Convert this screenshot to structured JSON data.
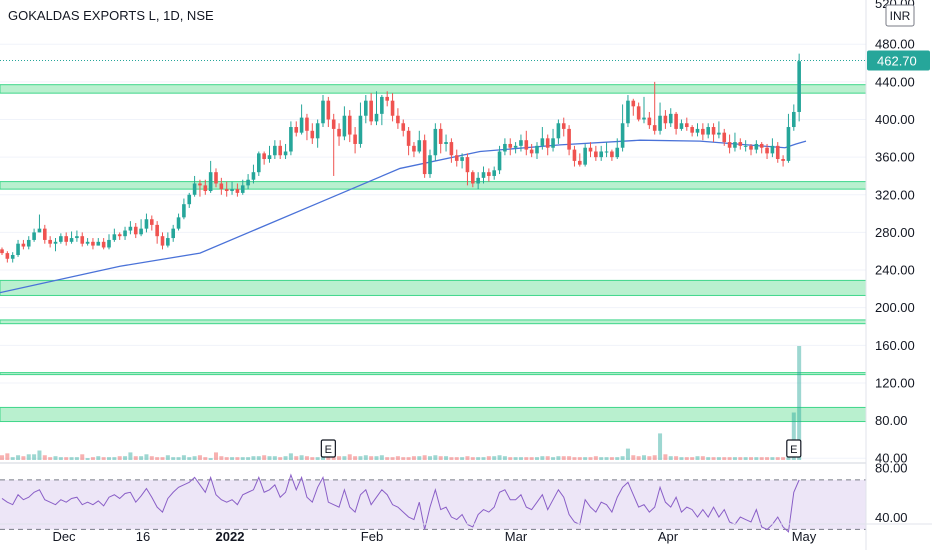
{
  "header": {
    "title": "GOKALDAS EXPORTS L, 1D, NSE"
  },
  "currency": "INR",
  "price_label": "462.70",
  "top_tick_partial": "520.00",
  "colors": {
    "up": "#26a69a",
    "down": "#ef5350",
    "zone_fill": "#b9f0cf",
    "zone_edge": "#3ed68a",
    "ma": "#4a72d8",
    "rsi_line": "#8a5fc7",
    "rsi_band": "#ede6f7",
    "price_label_bg": "#26a69a",
    "grid": "#f0f3fa",
    "axis_text": "#131722"
  },
  "chart_data": {
    "type": "candlestick",
    "symbol": "GOKALDAS EXPORTS L",
    "interval": "1D",
    "exchange": "NSE",
    "y_axis": {
      "ticks": [
        40,
        80,
        120,
        160,
        200,
        240,
        280,
        320,
        360,
        400,
        440,
        480
      ],
      "range": [
        36,
        527
      ]
    },
    "x_axis": {
      "labels": [
        "Dec",
        "16",
        "2022",
        "Feb",
        "Mar",
        "Apr",
        "May"
      ]
    },
    "last_price": 462.7,
    "zones": [
      [
        428,
        437
      ],
      [
        326,
        334
      ],
      [
        213,
        229
      ],
      [
        183,
        187
      ],
      [
        129,
        131
      ],
      [
        79,
        94
      ]
    ],
    "candles": [
      [
        262,
        258,
        264,
        256
      ],
      [
        258,
        252,
        260,
        248
      ],
      [
        252,
        256,
        259,
        248
      ],
      [
        256,
        268,
        272,
        254
      ],
      [
        268,
        265,
        272,
        262
      ],
      [
        265,
        272,
        276,
        262
      ],
      [
        272,
        280,
        284,
        270
      ],
      [
        280,
        284,
        299,
        280
      ],
      [
        284,
        272,
        288,
        268
      ],
      [
        272,
        268,
        276,
        264
      ],
      [
        268,
        270,
        274,
        260
      ],
      [
        270,
        276,
        279,
        268
      ],
      [
        276,
        270,
        280,
        266
      ],
      [
        270,
        274,
        281,
        268
      ],
      [
        274,
        276,
        282,
        270
      ],
      [
        276,
        268,
        280,
        265
      ],
      [
        268,
        270,
        274,
        266
      ],
      [
        270,
        266,
        274,
        262
      ],
      [
        266,
        270,
        274,
        266
      ],
      [
        270,
        264,
        274,
        262
      ],
      [
        264,
        272,
        278,
        262
      ],
      [
        272,
        278,
        284,
        270
      ],
      [
        278,
        276,
        280,
        272
      ],
      [
        276,
        282,
        286,
        272
      ],
      [
        282,
        286,
        292,
        278
      ],
      [
        286,
        278,
        290,
        274
      ],
      [
        278,
        284,
        294,
        276
      ],
      [
        284,
        294,
        300,
        280
      ],
      [
        294,
        288,
        298,
        282
      ],
      [
        288,
        276,
        292,
        268
      ],
      [
        276,
        266,
        280,
        262
      ],
      [
        266,
        274,
        280,
        264
      ],
      [
        274,
        284,
        288,
        270
      ],
      [
        284,
        296,
        300,
        282
      ],
      [
        296,
        310,
        316,
        294
      ],
      [
        310,
        320,
        322,
        306
      ],
      [
        320,
        332,
        340,
        318
      ],
      [
        332,
        330,
        336,
        318
      ],
      [
        330,
        324,
        336,
        320
      ],
      [
        324,
        344,
        356,
        322
      ],
      [
        344,
        332,
        348,
        328
      ],
      [
        332,
        326,
        338,
        320
      ],
      [
        326,
        324,
        334,
        318
      ],
      [
        324,
        326,
        334,
        320
      ],
      [
        326,
        322,
        332,
        318
      ],
      [
        322,
        330,
        336,
        320
      ],
      [
        330,
        336,
        342,
        326
      ],
      [
        336,
        344,
        352,
        332
      ],
      [
        344,
        364,
        366,
        340
      ],
      [
        364,
        358,
        366,
        352
      ],
      [
        358,
        362,
        372,
        354
      ],
      [
        362,
        372,
        378,
        358
      ],
      [
        372,
        362,
        378,
        358
      ],
      [
        362,
        366,
        374,
        358
      ],
      [
        366,
        392,
        398,
        362
      ],
      [
        392,
        386,
        398,
        382
      ],
      [
        386,
        402,
        416,
        384
      ],
      [
        402,
        388,
        406,
        378
      ],
      [
        388,
        380,
        396,
        374
      ],
      [
        380,
        396,
        400,
        370
      ],
      [
        396,
        420,
        426,
        392
      ],
      [
        420,
        400,
        424,
        392
      ],
      [
        400,
        390,
        406,
        340
      ],
      [
        390,
        382,
        396,
        372
      ],
      [
        382,
        404,
        414,
        378
      ],
      [
        404,
        384,
        410,
        376
      ],
      [
        384,
        374,
        392,
        364
      ],
      [
        374,
        404,
        418,
        370
      ],
      [
        404,
        420,
        426,
        396
      ],
      [
        420,
        398,
        428,
        394
      ],
      [
        398,
        406,
        430,
        394
      ],
      [
        406,
        424,
        426,
        394
      ],
      [
        424,
        420,
        430,
        414
      ],
      [
        420,
        404,
        428,
        398
      ],
      [
        404,
        396,
        412,
        390
      ],
      [
        396,
        388,
        400,
        382
      ],
      [
        388,
        372,
        392,
        362
      ],
      [
        372,
        366,
        376,
        360
      ],
      [
        366,
        378,
        388,
        364
      ],
      [
        378,
        342,
        384,
        338
      ],
      [
        342,
        362,
        368,
        338
      ],
      [
        362,
        390,
        396,
        356
      ],
      [
        390,
        374,
        396,
        364
      ],
      [
        374,
        376,
        384,
        366
      ],
      [
        376,
        362,
        380,
        354
      ],
      [
        362,
        356,
        368,
        350
      ],
      [
        356,
        360,
        364,
        348
      ],
      [
        360,
        344,
        364,
        330
      ],
      [
        344,
        332,
        346,
        328
      ],
      [
        332,
        338,
        344,
        326
      ],
      [
        338,
        344,
        350,
        332
      ],
      [
        344,
        340,
        348,
        334
      ],
      [
        340,
        346,
        350,
        336
      ],
      [
        346,
        366,
        372,
        342
      ],
      [
        366,
        374,
        380,
        362
      ],
      [
        374,
        370,
        380,
        362
      ],
      [
        370,
        372,
        376,
        364
      ],
      [
        372,
        378,
        384,
        366
      ],
      [
        378,
        368,
        388,
        362
      ],
      [
        368,
        364,
        374,
        360
      ],
      [
        364,
        372,
        376,
        358
      ],
      [
        372,
        380,
        392,
        368
      ],
      [
        380,
        370,
        384,
        362
      ],
      [
        370,
        380,
        390,
        366
      ],
      [
        380,
        396,
        400,
        374
      ],
      [
        396,
        390,
        402,
        382
      ],
      [
        390,
        368,
        394,
        362
      ],
      [
        368,
        356,
        372,
        350
      ],
      [
        356,
        352,
        364,
        350
      ],
      [
        352,
        370,
        374,
        350
      ],
      [
        370,
        366,
        376,
        360
      ],
      [
        366,
        360,
        372,
        356
      ],
      [
        360,
        366,
        372,
        356
      ],
      [
        366,
        366,
        376,
        360
      ],
      [
        366,
        360,
        368,
        356
      ],
      [
        360,
        370,
        380,
        358
      ],
      [
        370,
        396,
        416,
        366
      ],
      [
        396,
        420,
        426,
        392
      ],
      [
        420,
        414,
        422,
        404
      ],
      [
        414,
        400,
        418,
        398
      ],
      [
        400,
        402,
        424,
        396
      ],
      [
        402,
        394,
        408,
        390
      ],
      [
        394,
        388,
        440,
        384
      ],
      [
        388,
        404,
        418,
        384
      ],
      [
        404,
        396,
        410,
        390
      ],
      [
        396,
        406,
        412,
        392
      ],
      [
        406,
        390,
        408,
        384
      ],
      [
        390,
        396,
        400,
        388
      ],
      [
        396,
        392,
        402,
        388
      ],
      [
        392,
        386,
        394,
        382
      ],
      [
        386,
        390,
        396,
        382
      ],
      [
        390,
        384,
        396,
        378
      ],
      [
        384,
        392,
        396,
        380
      ],
      [
        392,
        384,
        396,
        376
      ],
      [
        384,
        386,
        398,
        380
      ],
      [
        386,
        376,
        390,
        372
      ],
      [
        376,
        370,
        384,
        364
      ],
      [
        370,
        376,
        386,
        366
      ],
      [
        376,
        372,
        380,
        368
      ],
      [
        372,
        372,
        378,
        366
      ],
      [
        372,
        368,
        374,
        362
      ],
      [
        368,
        374,
        378,
        364
      ],
      [
        374,
        370,
        376,
        364
      ],
      [
        370,
        364,
        374,
        358
      ],
      [
        364,
        372,
        380,
        360
      ],
      [
        372,
        358,
        376,
        354
      ],
      [
        358,
        356,
        362,
        350
      ],
      [
        356,
        392,
        406,
        354
      ],
      [
        392,
        408,
        416,
        388
      ],
      [
        408,
        462,
        470,
        398
      ]
    ],
    "moving_average": {
      "name": "",
      "points": [
        [
          0,
          216
        ],
        [
          120,
          244
        ],
        [
          200,
          258
        ],
        [
          320,
          312
        ],
        [
          400,
          348
        ],
        [
          480,
          366
        ],
        [
          560,
          373
        ],
        [
          640,
          378
        ],
        [
          700,
          377
        ],
        [
          760,
          372
        ],
        [
          785,
          370
        ],
        [
          796,
          374
        ],
        [
          806,
          377
        ]
      ]
    },
    "volume": {
      "values": [
        5,
        7,
        3,
        5,
        4,
        6,
        6,
        10,
        5,
        3,
        4,
        3,
        3,
        3,
        3,
        6,
        2,
        3,
        4,
        3,
        3,
        3,
        4,
        4,
        8,
        4,
        4,
        6,
        4,
        3,
        3,
        5,
        3,
        3,
        5,
        3,
        4,
        5,
        3,
        2,
        8,
        4,
        3,
        3,
        3,
        3,
        3,
        4,
        4,
        5,
        4,
        4,
        3,
        4,
        7,
        4,
        5,
        4,
        3,
        3,
        4,
        4,
        9,
        4,
        4,
        6,
        4,
        4,
        5,
        4,
        4,
        5,
        3,
        3,
        4,
        3,
        3,
        4,
        4,
        5,
        4,
        5,
        4,
        4,
        3,
        3,
        3,
        4,
        3,
        3,
        3,
        4,
        4,
        5,
        4,
        3,
        3,
        3,
        3,
        3,
        3,
        4,
        4,
        3,
        4,
        4,
        4,
        3,
        3,
        3,
        3,
        4,
        3,
        3,
        3,
        3,
        4,
        12,
        5,
        4,
        5,
        4,
        5,
        28,
        6,
        4,
        4,
        3,
        3,
        3,
        4,
        4,
        3,
        3,
        3,
        3,
        3,
        3,
        3,
        3,
        3,
        3,
        3,
        3,
        3,
        3,
        3,
        4,
        50,
        120
      ],
      "earnings_markers": [
        "E",
        "E"
      ]
    },
    "rsi": {
      "ticks": [
        40,
        80
      ],
      "values": [
        55,
        52,
        50,
        58,
        54,
        56,
        60,
        62,
        54,
        52,
        50,
        54,
        52,
        55,
        56,
        50,
        52,
        50,
        53,
        49,
        56,
        58,
        55,
        59,
        60,
        52,
        57,
        63,
        56,
        48,
        44,
        55,
        60,
        64,
        66,
        68,
        72,
        66,
        60,
        72,
        58,
        54,
        52,
        54,
        50,
        58,
        60,
        62,
        72,
        60,
        62,
        66,
        56,
        60,
        74,
        62,
        72,
        56,
        52,
        64,
        72,
        52,
        50,
        48,
        62,
        48,
        44,
        58,
        62,
        50,
        56,
        62,
        58,
        50,
        48,
        44,
        40,
        38,
        52,
        30,
        48,
        62,
        46,
        48,
        40,
        38,
        42,
        34,
        32,
        42,
        46,
        44,
        48,
        60,
        62,
        54,
        54,
        58,
        48,
        46,
        52,
        58,
        46,
        54,
        62,
        56,
        42,
        36,
        34,
        54,
        48,
        44,
        52,
        50,
        44,
        56,
        64,
        68,
        58,
        48,
        50,
        44,
        48,
        64,
        52,
        48,
        56,
        44,
        48,
        46,
        40,
        46,
        40,
        48,
        40,
        46,
        36,
        34,
        40,
        38,
        36,
        46,
        32,
        30,
        34,
        40,
        32,
        28,
        60,
        70
      ],
      "band": [
        30,
        70
      ]
    }
  }
}
